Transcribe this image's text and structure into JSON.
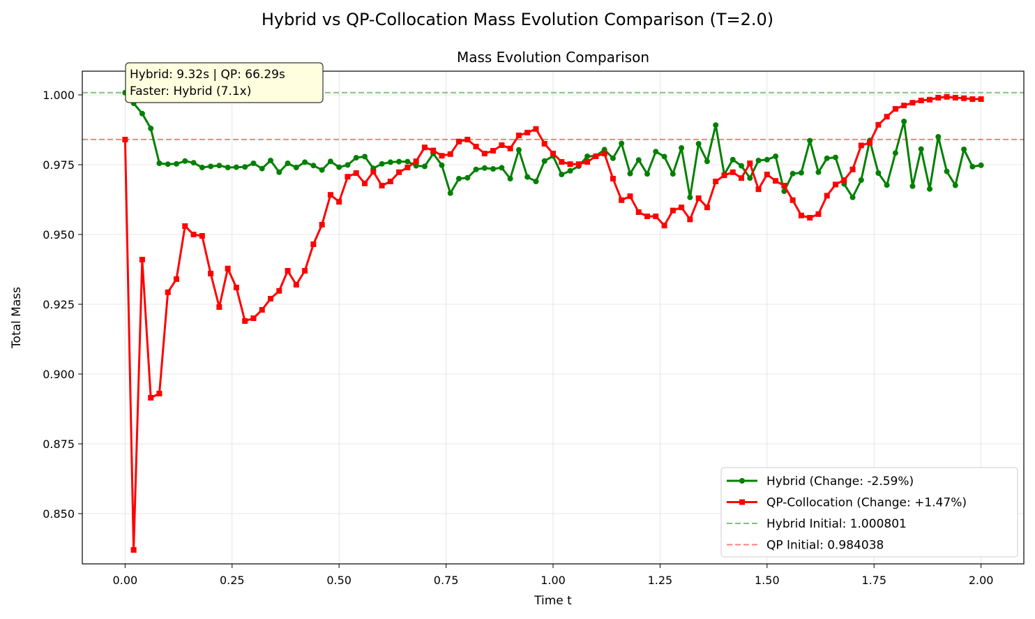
{
  "figure_title": "Hybrid vs QP-Collocation Mass Evolution Comparison (T=2.0)",
  "annotation": {
    "line1": "Hybrid: 9.32s | QP: 66.29s",
    "line2": "Faster: Hybrid (7.1x)"
  },
  "chart_data": {
    "type": "line",
    "title": "Mass Evolution Comparison",
    "xlabel": "Time t",
    "ylabel": "Total Mass",
    "xlim": [
      -0.1,
      2.1
    ],
    "ylim": [
      0.832,
      1.0085
    ],
    "xticks": [
      0.0,
      0.25,
      0.5,
      0.75,
      1.0,
      1.25,
      1.5,
      1.75,
      2.0
    ],
    "xtick_labels": [
      "0.00",
      "0.25",
      "0.50",
      "0.75",
      "1.00",
      "1.25",
      "1.50",
      "1.75",
      "2.00"
    ],
    "yticks": [
      0.85,
      0.875,
      0.9,
      0.925,
      0.95,
      0.975,
      1.0
    ],
    "ytick_labels": [
      "0.850",
      "0.875",
      "0.900",
      "0.925",
      "0.950",
      "0.975",
      "1.000"
    ],
    "grid": true,
    "legend_position": "bottom-right",
    "t": [
      0.0,
      0.02,
      0.04,
      0.06,
      0.08,
      0.1,
      0.12,
      0.14,
      0.16,
      0.18,
      0.2,
      0.22,
      0.24,
      0.26,
      0.28,
      0.3,
      0.32,
      0.34,
      0.36,
      0.38,
      0.4,
      0.42,
      0.44,
      0.46,
      0.48,
      0.5,
      0.52,
      0.54,
      0.56,
      0.58,
      0.6,
      0.62,
      0.64,
      0.66,
      0.68,
      0.7,
      0.72,
      0.74,
      0.76,
      0.78,
      0.8,
      0.82,
      0.84,
      0.86,
      0.88,
      0.9,
      0.92,
      0.94,
      0.96,
      0.98,
      1.0,
      1.02,
      1.04,
      1.06,
      1.08,
      1.1,
      1.12,
      1.14,
      1.16,
      1.18,
      1.2,
      1.22,
      1.24,
      1.26,
      1.28,
      1.3,
      1.32,
      1.34,
      1.36,
      1.38,
      1.4,
      1.42,
      1.44,
      1.46,
      1.48,
      1.5,
      1.52,
      1.54,
      1.56,
      1.58,
      1.6,
      1.62,
      1.64,
      1.66,
      1.68,
      1.7,
      1.72,
      1.74,
      1.76,
      1.78,
      1.8,
      1.82,
      1.84,
      1.86,
      1.88,
      1.9,
      1.92,
      1.94,
      1.96,
      1.98,
      2.0
    ],
    "series": [
      {
        "name": "Hybrid (Change: -2.59%)",
        "color": "#008000",
        "marker": "circle",
        "values": [
          1.0008,
          0.997,
          0.9933,
          0.988,
          0.9755,
          0.9752,
          0.9753,
          0.9763,
          0.9757,
          0.974,
          0.9744,
          0.9747,
          0.974,
          0.9741,
          0.9742,
          0.9755,
          0.9736,
          0.9765,
          0.9723,
          0.9755,
          0.974,
          0.9759,
          0.9747,
          0.9731,
          0.9762,
          0.9741,
          0.9749,
          0.9775,
          0.9779,
          0.9737,
          0.9753,
          0.9759,
          0.9761,
          0.9761,
          0.9746,
          0.9744,
          0.979,
          0.9748,
          0.9648,
          0.97,
          0.9703,
          0.9733,
          0.9738,
          0.9735,
          0.9739,
          0.97,
          0.9803,
          0.9706,
          0.969,
          0.9763,
          0.9781,
          0.9715,
          0.9728,
          0.9745,
          0.978,
          0.9781,
          0.9804,
          0.9773,
          0.9826,
          0.9718,
          0.9767,
          0.9717,
          0.9797,
          0.9779,
          0.9717,
          0.981,
          0.9633,
          0.9825,
          0.9762,
          0.9892,
          0.9715,
          0.9768,
          0.9746,
          0.9702,
          0.9765,
          0.9768,
          0.978,
          0.9655,
          0.9718,
          0.9721,
          0.9836,
          0.9723,
          0.9773,
          0.9776,
          0.9681,
          0.9633,
          0.9695,
          0.9837,
          0.972,
          0.9677,
          0.9792,
          0.9905,
          0.9673,
          0.9806,
          0.9663,
          0.985,
          0.9726,
          0.9676,
          0.9805,
          0.9743,
          0.9748
        ]
      },
      {
        "name": "QP-Collocation (Change: +1.47%)",
        "color": "#ff0000",
        "marker": "square",
        "values": [
          0.984,
          0.837,
          0.941,
          0.8915,
          0.893,
          0.9293,
          0.934,
          0.953,
          0.95,
          0.9495,
          0.936,
          0.924,
          0.9378,
          0.931,
          0.919,
          0.92,
          0.923,
          0.927,
          0.9298,
          0.937,
          0.932,
          0.937,
          0.9465,
          0.9535,
          0.9642,
          0.9617,
          0.9707,
          0.972,
          0.9683,
          0.9725,
          0.9675,
          0.969,
          0.9723,
          0.974,
          0.9762,
          0.9812,
          0.9801,
          0.9782,
          0.9788,
          0.9833,
          0.984,
          0.9815,
          0.979,
          0.98,
          0.982,
          0.9808,
          0.9855,
          0.9865,
          0.9878,
          0.9825,
          0.979,
          0.976,
          0.9752,
          0.9752,
          0.976,
          0.978,
          0.979,
          0.97,
          0.9623,
          0.9637,
          0.958,
          0.9565,
          0.9565,
          0.9532,
          0.9586,
          0.9597,
          0.9554,
          0.963,
          0.9597,
          0.969,
          0.9712,
          0.9723,
          0.9702,
          0.9755,
          0.9662,
          0.9715,
          0.9692,
          0.9675,
          0.9623,
          0.9568,
          0.956,
          0.9573,
          0.9639,
          0.9679,
          0.9695,
          0.9733,
          0.9819,
          0.9829,
          0.9893,
          0.9922,
          0.995,
          0.9962,
          0.9972,
          0.998,
          0.9983,
          0.999,
          0.9993,
          0.999,
          0.9988,
          0.9985,
          0.9985
        ]
      }
    ],
    "reference_lines": [
      {
        "name": "Hybrid Initial: 1.000801",
        "y": 1.000801,
        "color": "#008000"
      },
      {
        "name": "QP Initial: 0.984038",
        "y": 0.984038,
        "color": "#ff0000"
      }
    ]
  }
}
